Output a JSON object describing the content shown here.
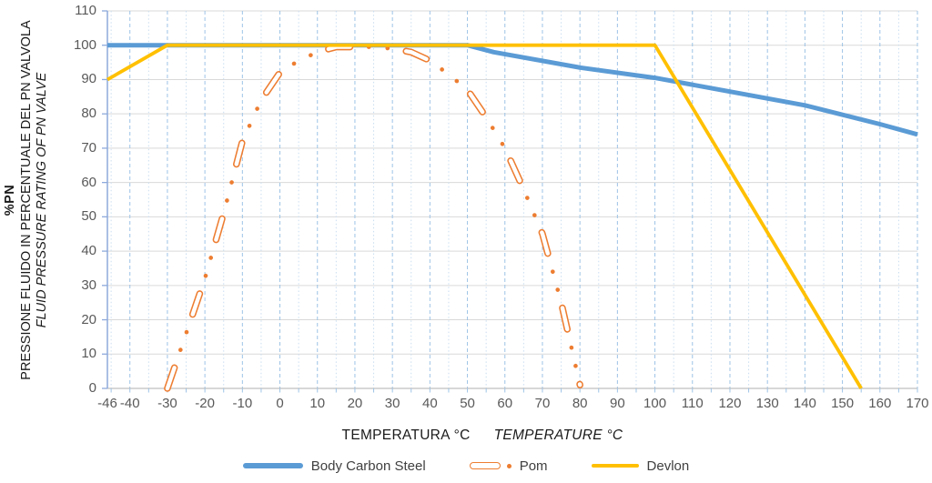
{
  "chart_data": {
    "type": "line",
    "title": "",
    "x_axis": {
      "label_it": "TEMPERATURA °C",
      "label_en": "TEMPERATURE °C",
      "ticks": [
        -46,
        -40,
        -30,
        -20,
        -10,
        0,
        10,
        20,
        30,
        40,
        50,
        60,
        70,
        80,
        90,
        100,
        110,
        120,
        130,
        140,
        150,
        160,
        170
      ],
      "lim": [
        -46,
        170
      ],
      "minor_gridline_step": 5
    },
    "y_axis": {
      "pn_label": "%PN",
      "label_it": "PRESSIONE FLUIDO IN PERCENTUALE DEL PN VALVOLA",
      "label_en": "FLUID PRESSURE RATING OF PN VALVE",
      "ticks": [
        0,
        10,
        20,
        30,
        40,
        50,
        60,
        70,
        80,
        90,
        100,
        110
      ],
      "lim": [
        0,
        110
      ]
    },
    "grid": true,
    "legend_position": "bottom",
    "series": [
      {
        "name": "Body Carbon Steel",
        "color": "#5B9BD5",
        "style": "solid",
        "points": [
          [
            -46,
            100
          ],
          [
            50,
            100
          ],
          [
            57,
            98
          ],
          [
            80,
            93.5
          ],
          [
            100,
            90.5
          ],
          [
            120,
            86.5
          ],
          [
            140,
            82.5
          ],
          [
            160,
            77
          ],
          [
            170,
            74
          ]
        ]
      },
      {
        "name": "Pom",
        "color": "#ED7D31",
        "style": "long-dash-dot-dot",
        "points": [
          [
            -30,
            0
          ],
          [
            -25,
            16
          ],
          [
            -20,
            32
          ],
          [
            -15,
            51
          ],
          [
            -10,
            72
          ],
          [
            -5,
            84
          ],
          [
            0,
            92
          ],
          [
            5,
            95.5
          ],
          [
            10,
            98
          ],
          [
            15,
            99.5
          ],
          [
            20,
            99.5
          ],
          [
            25,
            99.5
          ],
          [
            30,
            99
          ],
          [
            35,
            98
          ],
          [
            40,
            95.5
          ],
          [
            45,
            91.5
          ],
          [
            50,
            87
          ],
          [
            55,
            79
          ],
          [
            60,
            70
          ],
          [
            65,
            58
          ],
          [
            70,
            45
          ],
          [
            75,
            25
          ],
          [
            80,
            1
          ]
        ]
      },
      {
        "name": "Devlon",
        "color": "#FFC000",
        "style": "solid",
        "points": [
          [
            -46,
            90
          ],
          [
            -30,
            100
          ],
          [
            100,
            100
          ],
          [
            155,
            0
          ]
        ]
      }
    ]
  },
  "colors": {
    "series_blue": "#5B9BD5",
    "series_orange": "#ED7D31",
    "series_yellow": "#FFC000",
    "grid_horizontal": "#D9D9D9",
    "grid_major_vertical": "#9DC3E6",
    "grid_minor_vertical": "#C9DDF0",
    "axis_y_line": "#8EAADB",
    "axis_x_line": "#BFBFBF",
    "tick_text": "#595959",
    "title_text": "#1A1A1A",
    "legend_text": "#404040"
  }
}
